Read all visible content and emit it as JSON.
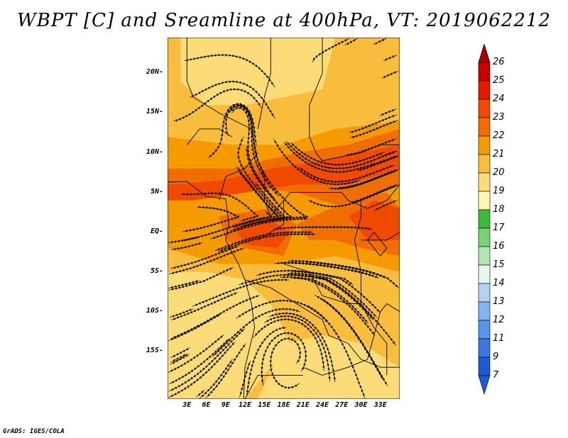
{
  "title": "WBPT [C] and Sreamline at 400hPa, VT: 2019062212",
  "footer": "GrADS: IGES/COLA",
  "lat_labels": [
    {
      "text": "20N",
      "lat": 20
    },
    {
      "text": "15N",
      "lat": 15
    },
    {
      "text": "10N",
      "lat": 10
    },
    {
      "text": "5N",
      "lat": 5
    },
    {
      "text": "EQ",
      "lat": 0
    },
    {
      "text": "5S",
      "lat": -5
    },
    {
      "text": "10S",
      "lat": -10
    },
    {
      "text": "15S",
      "lat": -15
    }
  ],
  "lon_labels": [
    {
      "text": "3E",
      "lon": 3
    },
    {
      "text": "6E",
      "lon": 6
    },
    {
      "text": "9E",
      "lon": 9
    },
    {
      "text": "12E",
      "lon": 12
    },
    {
      "text": "15E",
      "lon": 15
    },
    {
      "text": "18E",
      "lon": 18
    },
    {
      "text": "21E",
      "lon": 21
    },
    {
      "text": "24E",
      "lon": 24
    },
    {
      "text": "27E",
      "lon": 27
    },
    {
      "text": "30E",
      "lon": 30
    },
    {
      "text": "33E",
      "lon": 33
    }
  ],
  "colorbar": [
    {
      "label": "26",
      "color": "#a50000"
    },
    {
      "label": "25",
      "color": "#c80000"
    },
    {
      "label": "24",
      "color": "#e11b00"
    },
    {
      "label": "23",
      "color": "#f04a00"
    },
    {
      "label": "22",
      "color": "#f06e00"
    },
    {
      "label": "21",
      "color": "#f59a00"
    },
    {
      "label": "20",
      "color": "#f8bd3c"
    },
    {
      "label": "19",
      "color": "#fbdc78"
    },
    {
      "label": "18",
      "color": "#fdf6b4"
    },
    {
      "label": "17",
      "color": "#3cbc3c"
    },
    {
      "label": "16",
      "color": "#78d278"
    },
    {
      "label": "15",
      "color": "#b4e6b4"
    },
    {
      "label": "14",
      "color": "#e6f6f0"
    },
    {
      "label": "13",
      "color": "#b4d2f0"
    },
    {
      "label": "12",
      "color": "#82b4f0"
    },
    {
      "label": "11",
      "color": "#5a96e6"
    },
    {
      "label": "9",
      "color": "#3c78dc"
    },
    {
      "label": "7",
      "color": "#1e5ad2"
    }
  ],
  "colorbar_bottom_color": "#1e5ad2",
  "palette": {
    "yellow": "#fbdc78",
    "light": "#f8bd3c",
    "mid": "#f59a00",
    "orange": "#f06e00",
    "red": "#f04a00"
  }
}
